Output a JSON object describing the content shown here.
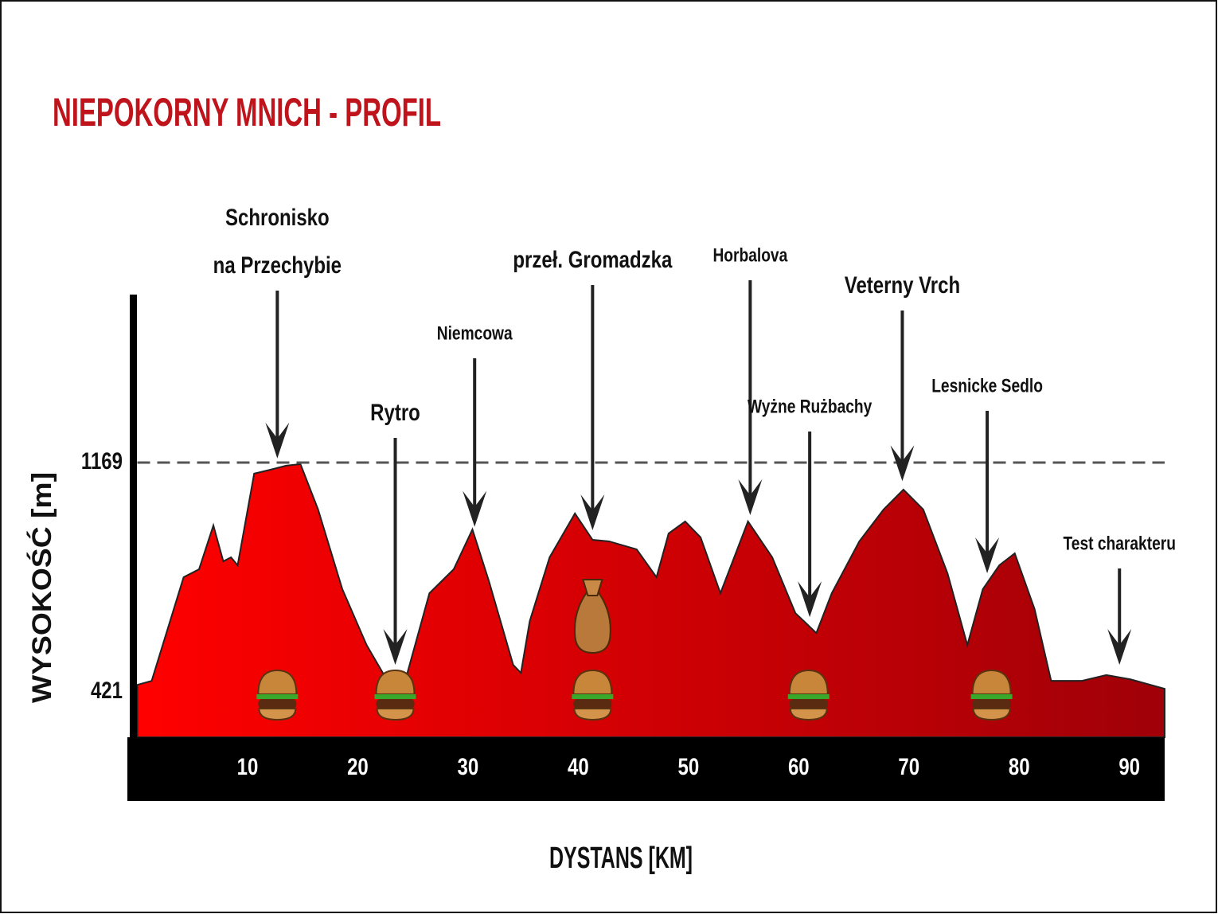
{
  "chart_data": {
    "type": "area",
    "title": "NIEPOKORNY MNICH - PROFIL",
    "xlabel": "DYSTANS [KM]",
    "ylabel": "WYSOKOŚĆ [m]",
    "x": [
      0,
      1.3,
      4.2,
      5.6,
      6.9,
      7.8,
      8.5,
      9.1,
      10.6,
      12.1,
      13.5,
      14.8,
      16.4,
      18.6,
      20.8,
      22.9,
      24.4,
      26.5,
      28.7,
      30.4,
      31.9,
      34.1,
      34.8,
      35.6,
      37.4,
      39.7,
      41.3,
      42.8,
      45.3,
      47.1,
      48.2,
      49.7,
      51.1,
      52.9,
      55.4,
      57.6,
      59.7,
      61.6,
      63.0,
      65.5,
      67.7,
      69.5,
      71.3,
      73.5,
      75.3,
      76.7,
      78.2,
      79.6,
      81.4,
      82.9,
      85.7,
      87.9,
      90.1,
      93.2
    ],
    "values": [
      444,
      457,
      795,
      821,
      964,
      847,
      860,
      834,
      1133,
      1146,
      1159,
      1164,
      1016,
      756,
      574,
      444,
      470,
      743,
      821,
      951,
      782,
      509,
      483,
      652,
      860,
      1003,
      917,
      912,
      886,
      795,
      938,
      977,
      925,
      743,
      977,
      860,
      678,
      613,
      743,
      912,
      1016,
      1081,
      1016,
      808,
      574,
      756,
      834,
      873,
      691,
      457,
      457,
      476,
      462,
      431
    ],
    "colors": [
      "#ff0000",
      "#a00008"
    ],
    "xlim": [
      0,
      93.2
    ],
    "ylim": [
      273,
      1717
    ],
    "xticks": [
      10,
      20,
      30,
      40,
      50,
      60,
      70,
      80,
      90
    ],
    "yticks": [
      421,
      1169
    ],
    "reference_line": 1169,
    "annotations": [
      {
        "lines": [
          "Schronisko",
          "na Przechybie"
        ],
        "x": 12.7
      },
      {
        "lines": [
          "Rytro"
        ],
        "x": 23.4
      },
      {
        "lines": [
          "Niemcowa"
        ],
        "x": 30.6
      },
      {
        "lines": [
          "przeł. Gromadzka"
        ],
        "x": 41.3
      },
      {
        "lines": [
          "Horbalova"
        ],
        "x": 55.6
      },
      {
        "lines": [
          "Wyżne Rużbachy"
        ],
        "x": 61.0
      },
      {
        "lines": [
          "Veterny Vrch"
        ],
        "x": 69.4
      },
      {
        "lines": [
          "Lesnicke Sedlo"
        ],
        "x": 77.1
      },
      {
        "lines": [
          "Test charakteru"
        ],
        "x": 89.1
      }
    ],
    "aid_stations": [
      12.7,
      23.4,
      41.3,
      60.9,
      77.5
    ],
    "bag_x": 41.3
  }
}
